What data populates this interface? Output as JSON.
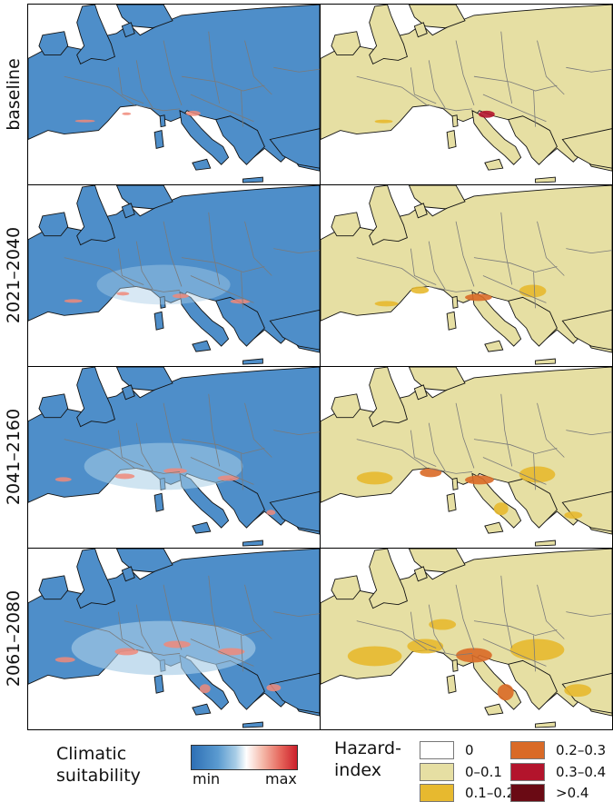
{
  "rows": [
    {
      "label": "baseline"
    },
    {
      "label": "2021–2040"
    },
    {
      "label": "2041–2160"
    },
    {
      "label": "2061–2080"
    }
  ],
  "suitability_legend": {
    "title_line1": "Climatic",
    "title_line2": "suitability",
    "min": "min",
    "max": "max"
  },
  "hazard_legend": {
    "title_line1": "Hazard-",
    "title_line2": "index",
    "items": [
      {
        "label": "0",
        "color": "#ffffff"
      },
      {
        "label": "0–0.1",
        "color": "#e6dfa3"
      },
      {
        "label": "0.1–0.2",
        "color": "#e7b92f"
      },
      {
        "label": "0.2–0.3",
        "color": "#d96a27"
      },
      {
        "label": "0.3–0.4",
        "color": "#b3142c"
      },
      {
        "label": ">0.4",
        "color": "#6a0a14"
      }
    ]
  },
  "colors": {
    "sea": "#ffffff",
    "land_suitability": "#4e8ec9",
    "land_hazard": "#e6dfa3",
    "border": "#7a7a7a"
  }
}
